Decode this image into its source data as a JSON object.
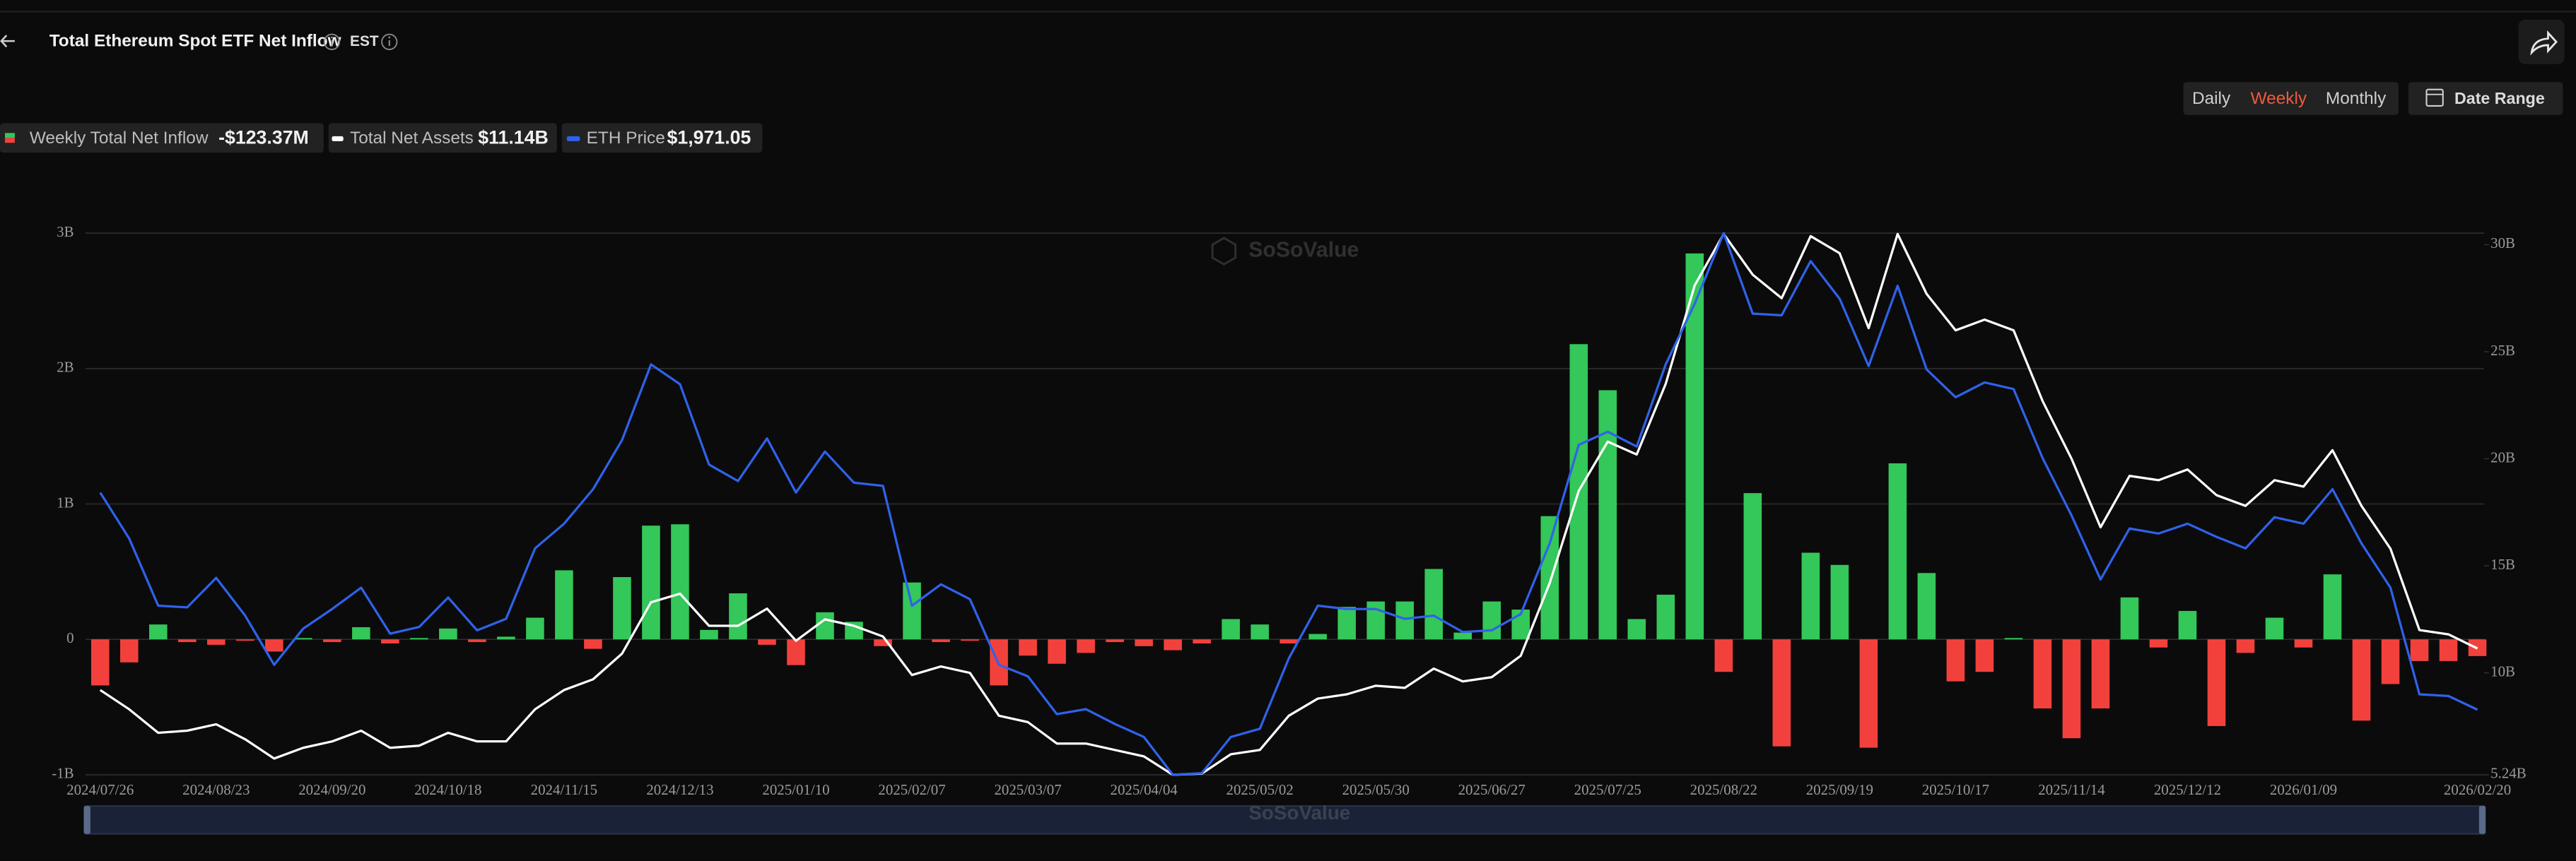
{
  "header": {
    "title": "Total Ethereum Spot ETF Net Inflow",
    "timezone": "EST"
  },
  "controls": {
    "periods": [
      "Daily",
      "Weekly",
      "Monthly"
    ],
    "active_period": 1,
    "date_range": "Date Range"
  },
  "chart_data": {
    "type": "bar",
    "watermark": "SoSoValue",
    "categories": [
      "2024/07/26",
      null,
      null,
      null,
      "2024/08/23",
      null,
      null,
      null,
      "2024/09/20",
      null,
      null,
      null,
      "2024/10/18",
      null,
      null,
      null,
      "2024/11/15",
      null,
      null,
      null,
      "2024/12/13",
      null,
      null,
      null,
      "2025/01/10",
      null,
      null,
      null,
      "2025/02/07",
      null,
      null,
      null,
      "2025/03/07",
      null,
      null,
      null,
      "2025/04/04",
      null,
      null,
      null,
      "2025/05/02",
      null,
      null,
      null,
      "2025/05/30",
      null,
      null,
      null,
      "2025/06/27",
      null,
      null,
      null,
      "2025/07/25",
      null,
      null,
      null,
      "2025/08/22",
      null,
      null,
      null,
      "2025/09/19",
      null,
      null,
      null,
      "2025/10/17",
      null,
      null,
      null,
      "2025/11/14",
      null,
      null,
      null,
      "2025/12/12",
      null,
      null,
      null,
      "2026/01/09",
      null,
      null,
      null,
      null,
      null,
      "2026/02/20"
    ],
    "ylim": [
      -1,
      3
    ],
    "yticks": [
      {
        "value": -1,
        "label": "-1B"
      },
      0,
      {
        "value": 1,
        "label": "1B"
      },
      {
        "value": 2,
        "label": "2B"
      },
      {
        "value": 3,
        "label": "3B"
      }
    ],
    "y2lim": [
      5.24,
      30.54
    ],
    "y2ticks": [
      {
        "value": 5.24,
        "label": "5.24B"
      },
      {
        "value": 10,
        "label": "10B"
      },
      {
        "value": 15,
        "label": "15B"
      },
      {
        "value": 20,
        "label": "20B"
      },
      {
        "value": 25,
        "label": "25B"
      },
      {
        "value": 30,
        "label": "30B"
      }
    ],
    "grid": true,
    "series": [
      {
        "name": "Weekly Total Net Inflow",
        "type": "bar",
        "color": "#34c759",
        "negative_color": "#f2413d",
        "legend_value": "-$123.37M",
        "values": [
          -0.34,
          -0.17,
          0.11,
          -0.02,
          -0.04,
          -0.01,
          -0.09,
          0.01,
          -0.02,
          0.09,
          -0.03,
          0.01,
          0.08,
          -0.02,
          0.02,
          0.16,
          0.51,
          -0.07,
          0.46,
          0.84,
          0.85,
          0.07,
          0.34,
          -0.04,
          -0.19,
          0.2,
          0.13,
          -0.05,
          0.42,
          -0.02,
          -0.01,
          -0.34,
          -0.12,
          -0.18,
          -0.1,
          -0.02,
          -0.05,
          -0.08,
          -0.03,
          0.15,
          0.11,
          -0.03,
          0.04,
          0.24,
          0.28,
          0.28,
          0.52,
          0.05,
          0.28,
          0.22,
          0.91,
          2.18,
          1.84,
          0.15,
          0.33,
          2.85,
          -0.24,
          1.08,
          -0.79,
          0.64,
          0.55,
          -0.8,
          1.3,
          0.49,
          -0.31,
          -0.24,
          0.01,
          -0.51,
          -0.73,
          -0.51,
          0.31,
          -0.06,
          0.21,
          -0.64,
          -0.1,
          0.16,
          -0.06,
          0.48,
          -0.6,
          -0.33,
          -0.16,
          -0.16,
          -0.12337
        ]
      },
      {
        "name": "Total Net Assets",
        "type": "line",
        "axis": "y2",
        "color": "#ffffff",
        "legend_value": "$11.14B",
        "values": [
          9.2,
          8.3,
          7.2,
          7.3,
          7.6,
          6.9,
          6.0,
          6.5,
          6.8,
          7.3,
          6.5,
          6.6,
          7.2,
          6.8,
          6.8,
          8.3,
          9.2,
          9.7,
          10.9,
          13.3,
          13.7,
          12.2,
          12.2,
          13.0,
          11.5,
          12.5,
          12.2,
          11.7,
          9.9,
          10.3,
          10.0,
          8.0,
          7.7,
          6.7,
          6.7,
          6.4,
          6.1,
          5.24,
          5.3,
          6.2,
          6.4,
          8.0,
          8.8,
          9.0,
          9.4,
          9.3,
          10.2,
          9.6,
          9.8,
          10.8,
          14.2,
          18.5,
          20.8,
          20.2,
          23.5,
          28.1,
          30.5,
          28.6,
          27.5,
          30.4,
          29.6,
          26.1,
          30.5,
          27.7,
          26.0,
          26.5,
          26.0,
          22.7,
          20.0,
          16.8,
          19.2,
          19.0,
          19.5,
          18.3,
          17.8,
          19.0,
          18.7,
          20.4,
          17.8,
          15.8,
          12.0,
          11.8,
          11.14
        ]
      },
      {
        "name": "ETH Price",
        "type": "line",
        "axis": "y3",
        "color": "#2f62ea",
        "legend_value": "$1,971.05",
        "values": [
          3274,
          2998,
          2595,
          2585,
          2762,
          2535,
          2240,
          2457,
          2575,
          2703,
          2427,
          2467,
          2644,
          2447,
          2516,
          2939,
          3087,
          3294,
          3589,
          4043,
          3924,
          3442,
          3343,
          3599,
          3274,
          3520,
          3333,
          3314,
          2595,
          2723,
          2634,
          2240,
          2171,
          1944,
          1974,
          1885,
          1807,
          1580,
          1590,
          1807,
          1856,
          2279,
          2595,
          2575,
          2575,
          2516,
          2535,
          2437,
          2447,
          2545,
          2969,
          3560,
          3639,
          3550,
          4043,
          4407,
          4831,
          4348,
          4338,
          4663,
          4437,
          4033,
          4515,
          4013,
          3846,
          3935,
          3895,
          3481,
          3136,
          2752,
          3058,
          3028,
          3087,
          3008,
          2939,
          3126,
          3087,
          3294,
          2969,
          2703,
          2063,
          2053,
          1971.05
        ]
      }
    ]
  }
}
